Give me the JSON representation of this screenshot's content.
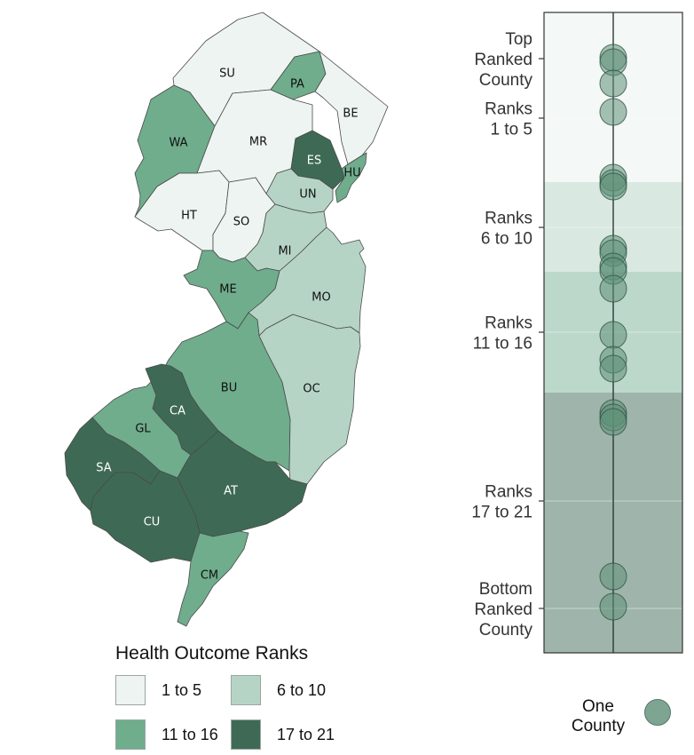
{
  "map": {
    "colors": {
      "1 to 5": "#eef4f1",
      "6 to 10": "#b5d4c5",
      "11 to 16": "#6fad8d",
      "17 to 21": "#3e6a55"
    },
    "counties": [
      {
        "code": "SU",
        "rank_group": "1 to 5"
      },
      {
        "code": "PA",
        "rank_group": "11 to 16"
      },
      {
        "code": "BE",
        "rank_group": "1 to 5"
      },
      {
        "code": "WA",
        "rank_group": "11 to 16"
      },
      {
        "code": "MR",
        "rank_group": "1 to 5"
      },
      {
        "code": "ES",
        "rank_group": "17 to 21"
      },
      {
        "code": "HU",
        "rank_group": "11 to 16"
      },
      {
        "code": "UN",
        "rank_group": "6 to 10"
      },
      {
        "code": "HT",
        "rank_group": "1 to 5"
      },
      {
        "code": "SO",
        "rank_group": "1 to 5"
      },
      {
        "code": "MI",
        "rank_group": "6 to 10"
      },
      {
        "code": "MO",
        "rank_group": "6 to 10"
      },
      {
        "code": "ME",
        "rank_group": "11 to 16"
      },
      {
        "code": "BU",
        "rank_group": "11 to 16"
      },
      {
        "code": "OC",
        "rank_group": "6 to 10"
      },
      {
        "code": "CA",
        "rank_group": "17 to 21"
      },
      {
        "code": "GL",
        "rank_group": "11 to 16"
      },
      {
        "code": "SA",
        "rank_group": "17 to 21"
      },
      {
        "code": "AT",
        "rank_group": "17 to 21"
      },
      {
        "code": "CU",
        "rank_group": "17 to 21"
      },
      {
        "code": "CM",
        "rank_group": "11 to 16"
      }
    ]
  },
  "legend": {
    "title": "Health Outcome Ranks",
    "items": [
      {
        "label": "1 to 5",
        "color": "#eef4f1"
      },
      {
        "label": "6 to 10",
        "color": "#b5d4c5"
      },
      {
        "label": "11 to 16",
        "color": "#6fad8d"
      },
      {
        "label": "17 to 21",
        "color": "#3e6a55"
      }
    ]
  },
  "rank_strip": {
    "labels": [
      {
        "lines": [
          "Top",
          "Ranked",
          "County"
        ]
      },
      {
        "lines": [
          "Ranks",
          "1 to 5"
        ]
      },
      {
        "lines": [
          "Ranks",
          "6 to 10"
        ]
      },
      {
        "lines": [
          "Ranks",
          "11 to 16"
        ]
      },
      {
        "lines": [
          "Ranks",
          "17 to 21"
        ]
      },
      {
        "lines": [
          "Bottom",
          "Ranked",
          "County"
        ]
      }
    ],
    "bands": [
      {
        "group": "1 to 5",
        "color": "#f4f8f6"
      },
      {
        "group": "6 to 10",
        "color": "#d9e9e1"
      },
      {
        "group": "11 to 16",
        "color": "#bcd8cb"
      },
      {
        "group": "17 to 21",
        "color": "#9fb5ab"
      }
    ],
    "dot_fill": "#5e8f78",
    "dot_stroke": "#2f5244",
    "key": {
      "lines": [
        "One",
        "County"
      ]
    }
  }
}
